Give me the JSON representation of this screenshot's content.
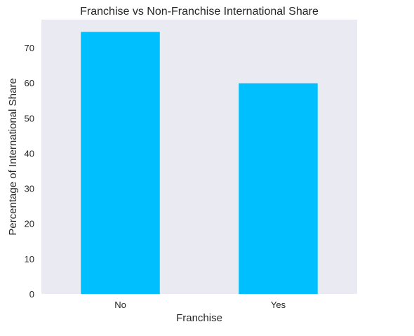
{
  "chart_data": {
    "type": "bar",
    "title": "Franchise vs Non-Franchise International Share",
    "xlabel": "Franchise",
    "ylabel": "Percentage of International Share",
    "categories": [
      "No",
      "Yes"
    ],
    "values": [
      74.5,
      59.9
    ],
    "ylim": [
      0,
      78
    ],
    "yticks": [
      0,
      10,
      20,
      30,
      40,
      50,
      60,
      70
    ],
    "grid": false,
    "bar_color": "#00bfff",
    "background_color": "#eaeaf2"
  }
}
